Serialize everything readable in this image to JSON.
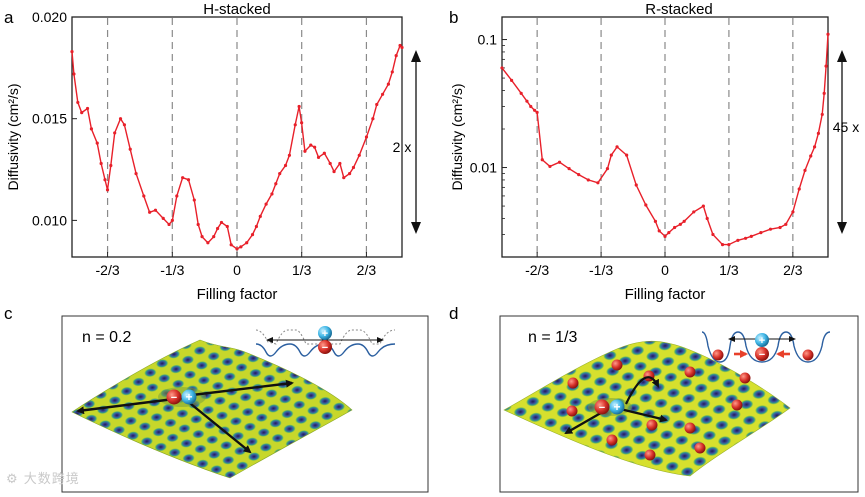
{
  "chart_data": [
    {
      "panel": "a",
      "type": "line",
      "title": "H-stacked",
      "xlabel": "Filling factor",
      "ylabel": "Diffusivity  (cm²/s)",
      "yscale": "linear",
      "xlim": [
        -0.85,
        0.85
      ],
      "ylim": [
        0.0082,
        0.02
      ],
      "yticks": [
        0.01,
        0.015,
        0.02
      ],
      "ytick_labels": [
        "0.010",
        "0.015",
        "0.020"
      ],
      "xticks": [
        -0.6667,
        -0.3333,
        0,
        0.3333,
        0.6667
      ],
      "xtick_labels": [
        "-2/3",
        "-1/3",
        "0",
        "1/3",
        "2/3"
      ],
      "dashed_x": [
        -0.6667,
        -0.3333,
        0,
        0.3333,
        0.6667
      ],
      "annotation": "2 x",
      "color": "#e8202a",
      "series": [
        {
          "name": "H-stacked",
          "x": [
            -0.85,
            -0.84,
            -0.82,
            -0.8,
            -0.77,
            -0.75,
            -0.72,
            -0.7,
            -0.68,
            -0.667,
            -0.65,
            -0.63,
            -0.6,
            -0.58,
            -0.55,
            -0.52,
            -0.48,
            -0.45,
            -0.42,
            -0.38,
            -0.35,
            -0.333,
            -0.31,
            -0.28,
            -0.25,
            -0.22,
            -0.2,
            -0.18,
            -0.15,
            -0.12,
            -0.1,
            -0.08,
            -0.05,
            -0.03,
            0,
            0.02,
            0.05,
            0.08,
            0.1,
            0.12,
            0.15,
            0.18,
            0.2,
            0.22,
            0.25,
            0.27,
            0.3,
            0.32,
            0.333,
            0.35,
            0.38,
            0.4,
            0.42,
            0.45,
            0.48,
            0.5,
            0.53,
            0.55,
            0.58,
            0.6,
            0.63,
            0.667,
            0.7,
            0.72,
            0.75,
            0.78,
            0.8,
            0.82,
            0.84,
            0.85
          ],
          "values": [
            0.0183,
            0.0172,
            0.0158,
            0.0153,
            0.0155,
            0.0145,
            0.0138,
            0.0128,
            0.012,
            0.0115,
            0.0127,
            0.0143,
            0.015,
            0.0147,
            0.0135,
            0.0123,
            0.0112,
            0.0104,
            0.0105,
            0.0101,
            0.0098,
            0.01,
            0.0112,
            0.0121,
            0.012,
            0.011,
            0.0098,
            0.0092,
            0.0089,
            0.0092,
            0.0096,
            0.0099,
            0.0097,
            0.0088,
            0.0086,
            0.0087,
            0.0089,
            0.0093,
            0.0097,
            0.0102,
            0.0108,
            0.0113,
            0.0118,
            0.0123,
            0.0127,
            0.0132,
            0.0147,
            0.0156,
            0.0148,
            0.0134,
            0.0137,
            0.0136,
            0.0131,
            0.0133,
            0.0128,
            0.0124,
            0.0128,
            0.0121,
            0.0123,
            0.0126,
            0.0132,
            0.0141,
            0.015,
            0.0157,
            0.0162,
            0.0167,
            0.0173,
            0.0181,
            0.0186,
            0.0185
          ]
        }
      ]
    },
    {
      "panel": "b",
      "type": "line",
      "title": "R-stacked",
      "xlabel": "Filling factor",
      "ylabel": "Diffusivity  (cm²/s)",
      "yscale": "log",
      "xlim": [
        -0.85,
        0.85
      ],
      "ylim": [
        0.002,
        0.15
      ],
      "yticks": [
        0.01,
        0.1
      ],
      "ytick_labels": [
        "0.01",
        "0.1"
      ],
      "xticks": [
        -0.6667,
        -0.3333,
        0,
        0.3333,
        0.6667
      ],
      "xtick_labels": [
        "-2/3",
        "-1/3",
        "0",
        "1/3",
        "2/3"
      ],
      "dashed_x": [
        -0.6667,
        -0.3333,
        0,
        0.3333,
        0.6667
      ],
      "annotation": "45 x",
      "color": "#e8202a",
      "series": [
        {
          "name": "R-stacked",
          "x": [
            -0.85,
            -0.8,
            -0.75,
            -0.72,
            -0.7,
            -0.68,
            -0.667,
            -0.64,
            -0.6,
            -0.55,
            -0.5,
            -0.45,
            -0.4,
            -0.35,
            -0.3,
            -0.28,
            -0.25,
            -0.2,
            -0.15,
            -0.1,
            -0.05,
            -0.03,
            0,
            0.02,
            0.05,
            0.08,
            0.1,
            0.15,
            0.2,
            0.22,
            0.25,
            0.3,
            0.333,
            0.38,
            0.42,
            0.45,
            0.5,
            0.55,
            0.6,
            0.63,
            0.667,
            0.7,
            0.73,
            0.76,
            0.78,
            0.8,
            0.82,
            0.83,
            0.84,
            0.85
          ],
          "values": [
            0.06,
            0.048,
            0.038,
            0.033,
            0.03,
            0.028,
            0.027,
            0.0115,
            0.0102,
            0.011,
            0.0098,
            0.0088,
            0.008,
            0.0076,
            0.0098,
            0.0125,
            0.0145,
            0.0125,
            0.0073,
            0.0051,
            0.0038,
            0.0032,
            0.0029,
            0.0031,
            0.0034,
            0.0036,
            0.0038,
            0.0045,
            0.005,
            0.004,
            0.003,
            0.0025,
            0.0025,
            0.0027,
            0.0028,
            0.0029,
            0.0031,
            0.0033,
            0.0034,
            0.0036,
            0.0045,
            0.0068,
            0.0095,
            0.0123,
            0.0145,
            0.0185,
            0.026,
            0.038,
            0.062,
            0.11
          ]
        }
      ]
    }
  ],
  "panels": {
    "a": {
      "label": "a"
    },
    "b": {
      "label": "b"
    },
    "c": {
      "label": "c",
      "caption": "n = 0.2"
    },
    "d": {
      "label": "d",
      "caption": "n = 1/3"
    }
  },
  "charges": {
    "plus": "+",
    "minus": "−"
  },
  "watermark": "大数跨境",
  "colors": {
    "curve": "#e8202a",
    "dash": "#8a8a8a",
    "axis": "#222222",
    "electron": "#d8322a",
    "hole": "#3fb6e6",
    "well": "#2b5fa0"
  }
}
